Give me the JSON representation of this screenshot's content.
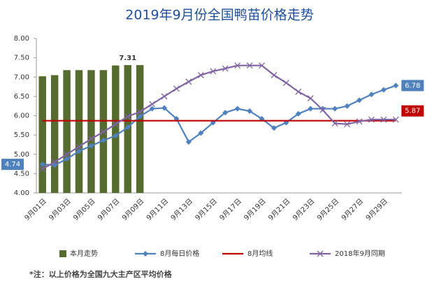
{
  "chart_data": {
    "type": "bar-line",
    "title": "2019年9月份全国鸭苗价格走势",
    "footnote": "*注：以上价格为全国九大主产区平均价格",
    "categories": [
      "9月01日",
      null,
      "9月03日",
      null,
      "9月05日",
      null,
      "9月07日",
      null,
      "9月09日",
      null,
      "9月11日",
      null,
      "9月13日",
      null,
      "9月15日",
      null,
      "9月17日",
      null,
      "9月19日",
      null,
      "9月21日",
      null,
      "9月23日",
      null,
      "9月25日",
      null,
      "9月27日",
      null,
      "9月29日",
      null
    ],
    "ylim": [
      4,
      8
    ],
    "yticks": [
      {
        "value": 4,
        "label": "4.00"
      },
      {
        "value": 4.5,
        "label": "4.50"
      },
      {
        "value": 5,
        "label": "5.00"
      },
      {
        "value": 5.5,
        "label": "5.50"
      },
      {
        "value": 6,
        "label": "6.00"
      },
      {
        "value": 6.5,
        "label": "6.50"
      },
      {
        "value": 7,
        "label": "7.00"
      },
      {
        "value": 7.5,
        "label": "7.50"
      },
      {
        "value": 8,
        "label": "8.00"
      }
    ],
    "series": [
      {
        "name": "本月走势",
        "kind": "bar",
        "color": "#556b2f",
        "values": [
          7.02,
          7.05,
          7.18,
          7.18,
          7.18,
          7.18,
          7.3,
          7.31,
          7.31,
          null,
          null,
          null,
          null,
          null,
          null,
          null,
          null,
          null,
          null,
          null,
          null,
          null,
          null,
          null,
          null,
          null,
          null,
          null,
          null,
          null
        ],
        "value_labels": [
          null,
          null,
          null,
          null,
          null,
          null,
          null,
          "7.31",
          null,
          null,
          null,
          null,
          null,
          null,
          null,
          null,
          null,
          null,
          null,
          null,
          null,
          null,
          null,
          null,
          null,
          null,
          null,
          null,
          null,
          null
        ]
      },
      {
        "name": "8月每日价格",
        "kind": "line",
        "marker": "diamond",
        "color": "#4f81bd",
        "values": [
          4.74,
          4.72,
          4.88,
          5.08,
          5.22,
          5.36,
          5.48,
          5.7,
          5.98,
          6.18,
          6.2,
          5.92,
          5.32,
          5.55,
          5.82,
          6.08,
          6.18,
          6.12,
          5.92,
          5.68,
          5.82,
          6.05,
          6.18,
          6.18,
          6.18,
          6.25,
          6.4,
          6.55,
          6.67,
          6.78
        ],
        "value_labels": [
          "4.74",
          null,
          null,
          null,
          null,
          null,
          null,
          null,
          null,
          null,
          null,
          null,
          null,
          null,
          null,
          null,
          null,
          null,
          null,
          null,
          null,
          null,
          null,
          null,
          null,
          null,
          null,
          null,
          null,
          "6.78"
        ]
      },
      {
        "name": "8月均线",
        "kind": "line",
        "marker": "none",
        "color": "#c00000",
        "values": [
          5.87,
          5.87,
          5.87,
          5.87,
          5.87,
          5.87,
          5.87,
          5.87,
          5.87,
          5.87,
          5.87,
          5.87,
          5.87,
          5.87,
          5.87,
          5.87,
          5.87,
          5.87,
          5.87,
          5.87,
          5.87,
          5.87,
          5.87,
          5.87,
          5.87,
          5.87,
          5.87,
          5.87,
          5.87,
          5.87
        ],
        "value_labels": [
          null,
          null,
          null,
          null,
          null,
          null,
          null,
          null,
          null,
          null,
          null,
          null,
          null,
          null,
          null,
          null,
          null,
          null,
          null,
          null,
          null,
          null,
          null,
          null,
          null,
          null,
          null,
          null,
          null,
          "5.87"
        ]
      },
      {
        "name": "2018年9月同期",
        "kind": "line",
        "marker": "x",
        "color": "#8064a2",
        "values": [
          4.62,
          4.8,
          5.0,
          5.2,
          5.4,
          5.58,
          5.78,
          5.98,
          6.1,
          6.3,
          6.5,
          6.7,
          6.88,
          7.05,
          7.15,
          7.22,
          7.3,
          7.3,
          7.3,
          7.05,
          6.85,
          6.62,
          6.45,
          6.15,
          5.8,
          5.78,
          5.85,
          5.9,
          5.9,
          5.9
        ]
      }
    ]
  }
}
